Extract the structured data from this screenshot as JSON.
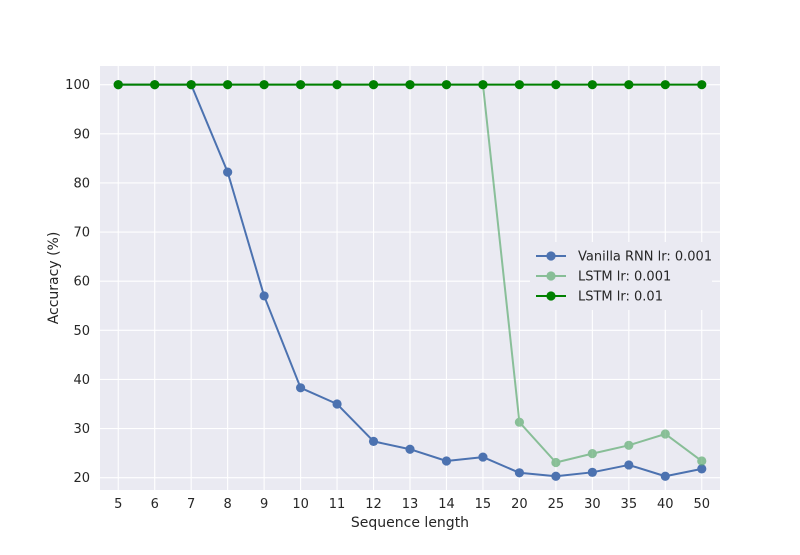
{
  "chart_data": {
    "type": "line",
    "title": "",
    "xlabel": "Sequence length",
    "ylabel": "Accuracy (%)",
    "categories": [
      "5",
      "6",
      "7",
      "8",
      "9",
      "10",
      "11",
      "12",
      "13",
      "14",
      "15",
      "20",
      "25",
      "30",
      "35",
      "40",
      "50"
    ],
    "yticks": [
      20,
      30,
      40,
      50,
      60,
      70,
      80,
      90,
      100
    ],
    "ylim": [
      17.5,
      103.8
    ],
    "grid": true,
    "legend_position": "center-right",
    "background": "#eaeaf2",
    "series": [
      {
        "name": "Vanilla RNN lr: 0.001",
        "color": "#4c72b0",
        "opacity": 1,
        "values": [
          100,
          100,
          100,
          82.2,
          57.0,
          38.3,
          35.0,
          27.4,
          25.8,
          23.4,
          24.2,
          21.0,
          20.3,
          21.1,
          22.6,
          20.3,
          21.8
        ]
      },
      {
        "name": "LSTM lr: 0.001",
        "color": "#55a868",
        "opacity": 0.65,
        "values": [
          100,
          100,
          100,
          100,
          100,
          100,
          100,
          100,
          100,
          100,
          100,
          31.3,
          23.1,
          24.9,
          26.6,
          28.9,
          23.4
        ]
      },
      {
        "name": "LSTM lr: 0.01",
        "color": "#008000",
        "opacity": 1,
        "values": [
          100,
          100,
          100,
          100,
          100,
          100,
          100,
          100,
          100,
          100,
          100,
          100,
          100,
          100,
          100,
          100,
          100
        ]
      }
    ]
  }
}
